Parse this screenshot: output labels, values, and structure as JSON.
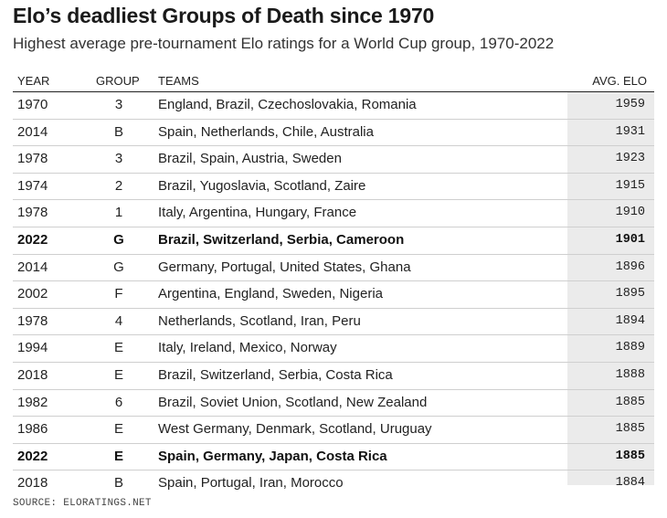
{
  "title": "Elo’s deadliest Groups of Death since 1970",
  "subtitle": "Highest average pre-tournament Elo ratings for a World Cup group, 1970-2022",
  "source": "SOURCE: ELORATINGS.NET",
  "chart_data": {
    "type": "table",
    "title": "Elo’s deadliest Groups of Death since 1970",
    "subtitle": "Highest average pre-tournament Elo ratings for a World Cup group, 1970-2022",
    "columns": [
      "YEAR",
      "GROUP",
      "TEAMS",
      "AVG. ELO"
    ],
    "rows": [
      {
        "year": "1970",
        "group": "3",
        "teams": "England, Brazil, Czechoslovakia, Romania",
        "elo": "1959",
        "bold": false
      },
      {
        "year": "2014",
        "group": "B",
        "teams": "Spain, Netherlands, Chile, Australia",
        "elo": "1931",
        "bold": false
      },
      {
        "year": "1978",
        "group": "3",
        "teams": "Brazil, Spain, Austria, Sweden",
        "elo": "1923",
        "bold": false
      },
      {
        "year": "1974",
        "group": "2",
        "teams": "Brazil, Yugoslavia, Scotland, Zaire",
        "elo": "1915",
        "bold": false
      },
      {
        "year": "1978",
        "group": "1",
        "teams": "Italy, Argentina, Hungary, France",
        "elo": "1910",
        "bold": false
      },
      {
        "year": "2022",
        "group": "G",
        "teams": "Brazil, Switzerland, Serbia, Cameroon",
        "elo": "1901",
        "bold": true
      },
      {
        "year": "2014",
        "group": "G",
        "teams": "Germany, Portugal, United States, Ghana",
        "elo": "1896",
        "bold": false
      },
      {
        "year": "2002",
        "group": "F",
        "teams": "Argentina, England, Sweden, Nigeria",
        "elo": "1895",
        "bold": false
      },
      {
        "year": "1978",
        "group": "4",
        "teams": "Netherlands, Scotland, Iran, Peru",
        "elo": "1894",
        "bold": false
      },
      {
        "year": "1994",
        "group": "E",
        "teams": "Italy, Ireland, Mexico, Norway",
        "elo": "1889",
        "bold": false
      },
      {
        "year": "2018",
        "group": "E",
        "teams": "Brazil, Switzerland, Serbia, Costa Rica",
        "elo": "1888",
        "bold": false
      },
      {
        "year": "1982",
        "group": "6",
        "teams": "Brazil, Soviet Union, Scotland, New Zealand",
        "elo": "1885",
        "bold": false
      },
      {
        "year": "1986",
        "group": "E",
        "teams": "West Germany, Denmark, Scotland, Uruguay",
        "elo": "1885",
        "bold": false
      },
      {
        "year": "2022",
        "group": "E",
        "teams": "Spain, Germany, Japan, Costa Rica",
        "elo": "1885",
        "bold": true
      },
      {
        "year": "2018",
        "group": "B",
        "teams": "Spain, Portugal, Iran, Morocco",
        "elo": "1884",
        "bold": false
      }
    ]
  }
}
